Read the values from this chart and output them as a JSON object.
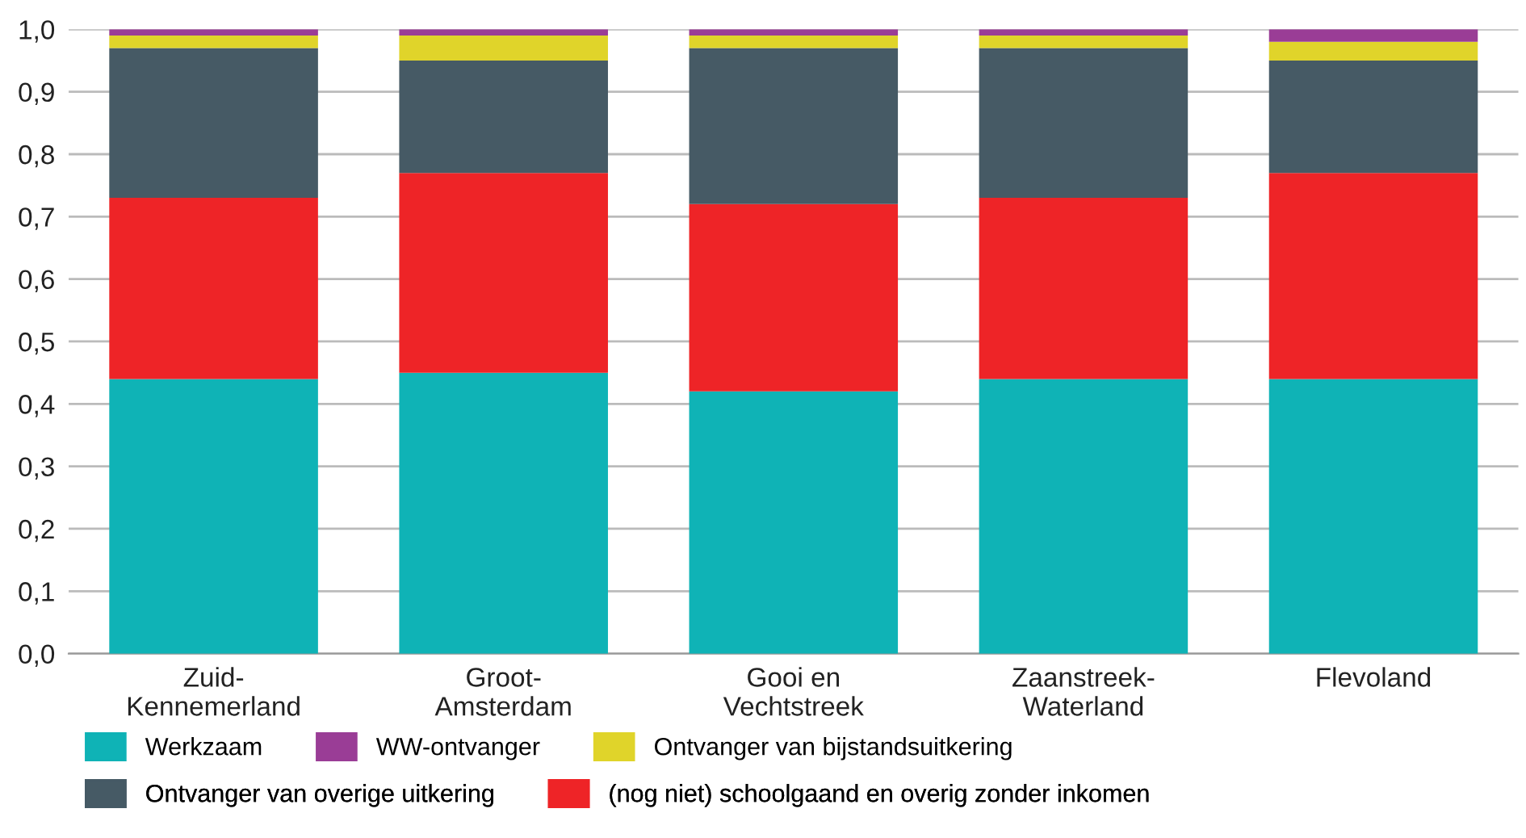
{
  "chart_data": {
    "type": "bar",
    "stacked": true,
    "categories": [
      "Zuid-\nKennemerland",
      "Groot-\nAmsterdam",
      "Gooi en\nVechtstreek",
      "Zaanstreek-\nWaterland",
      "Flevoland"
    ],
    "series": [
      {
        "name": "Werkzaam",
        "color": "#0fb3b6",
        "values": [
          0.44,
          0.45,
          0.42,
          0.44,
          0.44
        ]
      },
      {
        "name": "(nog niet) schoolgaand en overig zonder inkomen",
        "color": "#ee2427",
        "values": [
          0.29,
          0.32,
          0.3,
          0.29,
          0.33
        ]
      },
      {
        "name": "Ontvanger van overige uitkering",
        "color": "#465a65",
        "values": [
          0.24,
          0.18,
          0.25,
          0.24,
          0.18
        ]
      },
      {
        "name": "Ontvanger van bijstandsuitkering",
        "color": "#e0d42a",
        "values": [
          0.02,
          0.04,
          0.02,
          0.02,
          0.03
        ]
      },
      {
        "name": "WW-ontvanger",
        "color": "#9a3d96",
        "values": [
          0.01,
          0.01,
          0.01,
          0.01,
          0.02
        ]
      }
    ],
    "ylim": [
      0,
      1
    ],
    "yticks": [
      {
        "value": 0,
        "label": "0,0"
      },
      {
        "value": 0.1,
        "label": "0,1"
      },
      {
        "value": 0.2,
        "label": "0,2"
      },
      {
        "value": 0.3,
        "label": "0,3"
      },
      {
        "value": 0.4,
        "label": "0,4"
      },
      {
        "value": 0.5,
        "label": "0,5"
      },
      {
        "value": 0.6,
        "label": "0,6"
      },
      {
        "value": 0.7,
        "label": "0,7"
      },
      {
        "value": 0.8,
        "label": "0,8"
      },
      {
        "value": 0.9,
        "label": "0,9"
      },
      {
        "value": 1,
        "label": "1,0"
      }
    ],
    "grid": "y",
    "legend": "bottom"
  }
}
